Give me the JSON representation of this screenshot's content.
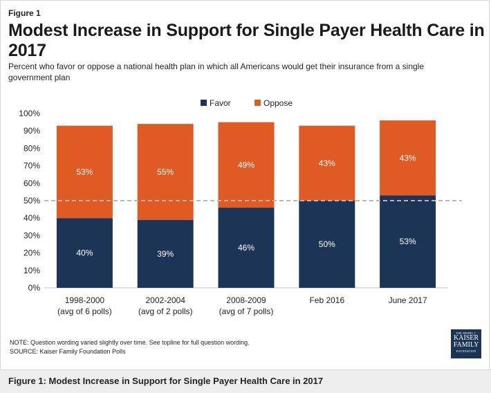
{
  "figure_label": "Figure 1",
  "title": "Modest Increase in Support for Single Payer Health Care in 2017",
  "subtitle": "Percent who favor or oppose a national health plan in which all Americans would get their insurance from a single government plan",
  "note": "NOTE: Question wording varied slightly over time. See topline for full question wording.",
  "source": "SOURCE: Kaiser Family Foundation Polls",
  "logo": {
    "line1": "THE HENRY J.",
    "line2": "KAISER",
    "line3": "FAMILY",
    "line4": "FOUNDATION"
  },
  "caption": "Figure 1: Modest Increase in Support for Single Payer Health Care in 2017",
  "chart_data": {
    "type": "bar",
    "stacked": true,
    "categories": [
      [
        "1998-2000",
        "(avg of 6 polls)"
      ],
      [
        "2002-2004",
        "(avg of 2 polls)"
      ],
      [
        "2008-2009",
        "(avg of 7 polls)"
      ],
      [
        "Feb 2016"
      ],
      [
        "June 2017"
      ]
    ],
    "series": [
      {
        "name": "Favor",
        "color": "#1c3557",
        "values": [
          40,
          39,
          46,
          50,
          53
        ]
      },
      {
        "name": "Oppose",
        "color": "#e05a23",
        "values": [
          53,
          55,
          49,
          43,
          43
        ]
      }
    ],
    "y_ticks": [
      "0%",
      "10%",
      "20%",
      "30%",
      "40%",
      "50%",
      "60%",
      "70%",
      "80%",
      "90%",
      "100%"
    ],
    "ylim": [
      0,
      100
    ],
    "reference_line": 50,
    "legend_position": "top-center",
    "grid": false
  }
}
